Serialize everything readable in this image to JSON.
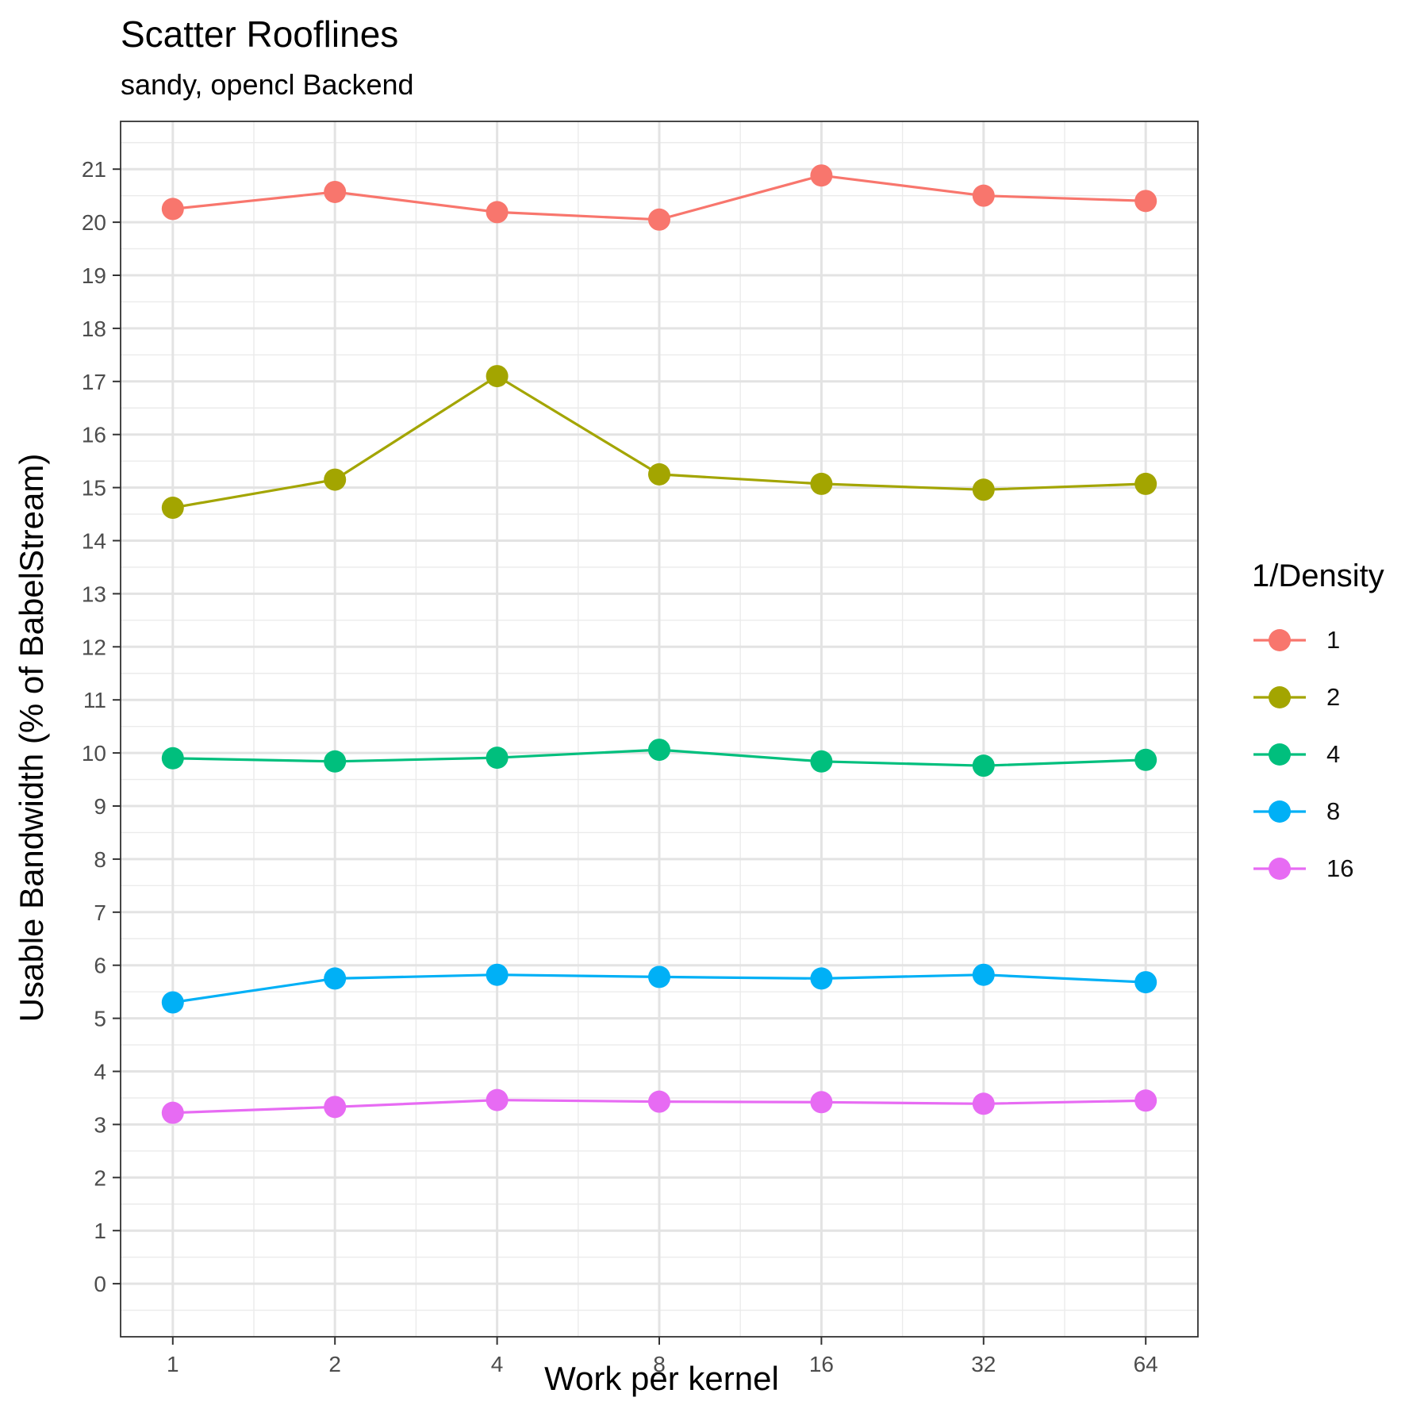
{
  "chart_data": {
    "type": "line",
    "title": "Scatter Rooflines",
    "subtitle": "sandy, opencl Backend",
    "xlabel": "Work per kernel",
    "ylabel": "Usable Bandwidth (% of BabelStream)",
    "x_scale": "log2",
    "x": [
      1,
      2,
      4,
      8,
      16,
      32,
      64
    ],
    "x_tick_labels": [
      "1",
      "2",
      "4",
      "8",
      "16",
      "32",
      "64"
    ],
    "y_ticks": [
      0,
      1,
      2,
      3,
      4,
      5,
      6,
      7,
      8,
      9,
      10,
      11,
      12,
      13,
      14,
      15,
      16,
      17,
      18,
      19,
      20,
      21
    ],
    "ylim": [
      -1,
      21.9
    ],
    "xlim": [
      0.8,
      80
    ],
    "grid": true,
    "legend_title": "1/Density",
    "legend_position": "right",
    "series": [
      {
        "name": "1",
        "color": "#F8766D",
        "values": [
          20.25,
          20.57,
          20.19,
          20.05,
          20.88,
          20.5,
          20.4
        ]
      },
      {
        "name": "2",
        "color": "#A3A500",
        "values": [
          14.62,
          15.15,
          17.1,
          15.25,
          15.07,
          14.96,
          15.07
        ]
      },
      {
        "name": "4",
        "color": "#00BF7D",
        "values": [
          9.9,
          9.84,
          9.91,
          10.06,
          9.84,
          9.76,
          9.87
        ]
      },
      {
        "name": "8",
        "color": "#00B0F6",
        "values": [
          5.3,
          5.75,
          5.82,
          5.78,
          5.75,
          5.82,
          5.68
        ]
      },
      {
        "name": "16",
        "color": "#E76BF3",
        "values": [
          3.22,
          3.33,
          3.46,
          3.43,
          3.42,
          3.39,
          3.45
        ]
      }
    ]
  }
}
